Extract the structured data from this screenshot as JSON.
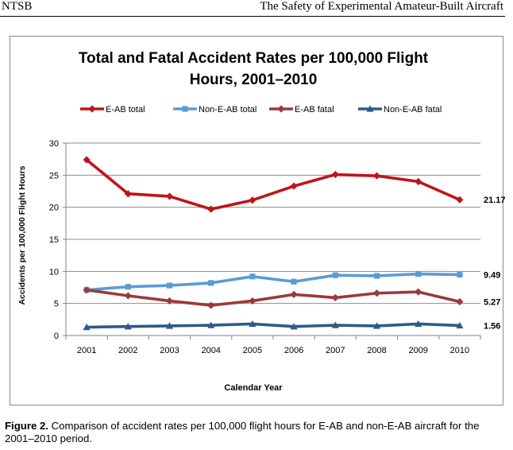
{
  "header": {
    "left": "NTSB",
    "right": "The Safety of Experimental Amateur-Built Aircraft"
  },
  "chart_data": {
    "type": "line",
    "title_line1": "Total and Fatal Accident Rates per 100,000 Flight",
    "title_line2": "Hours, 2001–2010",
    "xlabel": "Calendar Year",
    "ylabel": "Accidents per 100,000 Flight Hours",
    "ylim": [
      0,
      30
    ],
    "yticks": [
      0,
      5,
      10,
      15,
      20,
      25,
      30
    ],
    "grid": true,
    "legend_position": "top",
    "categories": [
      "2001",
      "2002",
      "2003",
      "2004",
      "2005",
      "2006",
      "2007",
      "2008",
      "2009",
      "2010"
    ],
    "series": [
      {
        "name": "E-AB total",
        "color": "#c0131b",
        "marker": "diamond",
        "values": [
          27.4,
          22.1,
          21.7,
          19.7,
          21.1,
          23.3,
          25.1,
          24.9,
          24.0,
          21.17
        ],
        "end_label": "21.17"
      },
      {
        "name": "Non-E-AB total",
        "color": "#5b9bd5",
        "marker": "square",
        "values": [
          7.1,
          7.6,
          7.8,
          8.2,
          9.2,
          8.4,
          9.4,
          9.3,
          9.6,
          9.49
        ],
        "end_label": "9.49"
      },
      {
        "name": "E-AB fatal",
        "color": "#9b3a3a",
        "marker": "diamond",
        "values": [
          7.1,
          6.2,
          5.4,
          4.7,
          5.4,
          6.4,
          5.9,
          6.6,
          6.8,
          5.27
        ],
        "end_label": "5.27"
      },
      {
        "name": "Non-E-AB fatal",
        "color": "#2e5a8a",
        "marker": "triangle",
        "values": [
          1.3,
          1.4,
          1.5,
          1.6,
          1.8,
          1.4,
          1.6,
          1.5,
          1.8,
          1.56
        ],
        "end_label": "1.56"
      }
    ]
  },
  "caption": {
    "label": "Figure 2.",
    "text": " Comparison of accident rates per 100,000 flight hours for E-AB and non-E-AB aircraft for the 2001–2010 period."
  }
}
